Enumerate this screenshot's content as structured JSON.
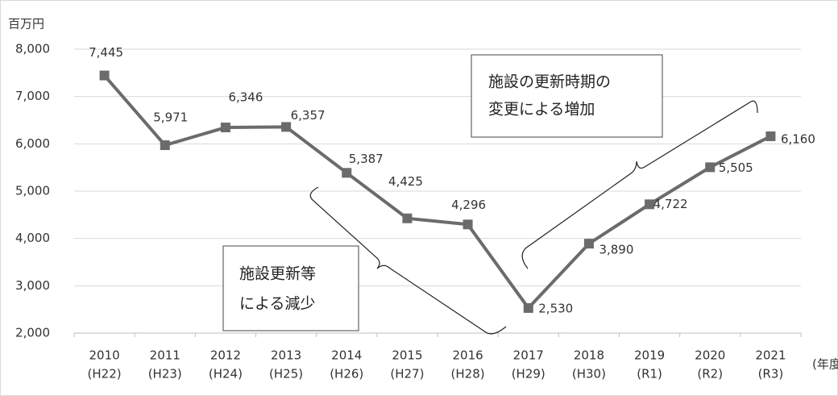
{
  "chart_data": {
    "type": "line",
    "y_unit": "百万円",
    "x_unit": "(年度)",
    "categories": [
      [
        "2010",
        "(H22)"
      ],
      [
        "2011",
        "(H23)"
      ],
      [
        "2012",
        "(H24)"
      ],
      [
        "2013",
        "(H25)"
      ],
      [
        "2014",
        "(H26)"
      ],
      [
        "2015",
        "(H27)"
      ],
      [
        "2016",
        "(H28)"
      ],
      [
        "2017",
        "(H29)"
      ],
      [
        "2018",
        "(H30)"
      ],
      [
        "2019",
        "(R1)"
      ],
      [
        "2020",
        "(R2)"
      ],
      [
        "2021",
        "(R3)"
      ]
    ],
    "series": [
      {
        "color": "#6b6b6b",
        "values": [
          7445,
          5971,
          6346,
          6357,
          5387,
          4425,
          4296,
          2530,
          3890,
          4722,
          5505,
          6160
        ],
        "value_labels": [
          "7,445",
          "5,971",
          "6,346",
          "6,357",
          "5,387",
          "4,425",
          "4,296",
          "2,530",
          "3,890",
          "4,722",
          "5,505",
          "6,160"
        ]
      }
    ],
    "ylim": [
      2000,
      8000
    ],
    "yticks": [
      {
        "value": 2000,
        "label": "2,000"
      },
      {
        "value": 3000,
        "label": "3,000"
      },
      {
        "value": 4000,
        "label": "4,000"
      },
      {
        "value": 5000,
        "label": "5,000"
      },
      {
        "value": 6000,
        "label": "6,000"
      },
      {
        "value": 7000,
        "label": "7,000"
      },
      {
        "value": 8000,
        "label": "8,000"
      }
    ],
    "grid": true,
    "annotations": [
      [
        "施設の更新時期の",
        "変更による増加"
      ],
      [
        "施設更新等",
        "による減少"
      ]
    ]
  }
}
